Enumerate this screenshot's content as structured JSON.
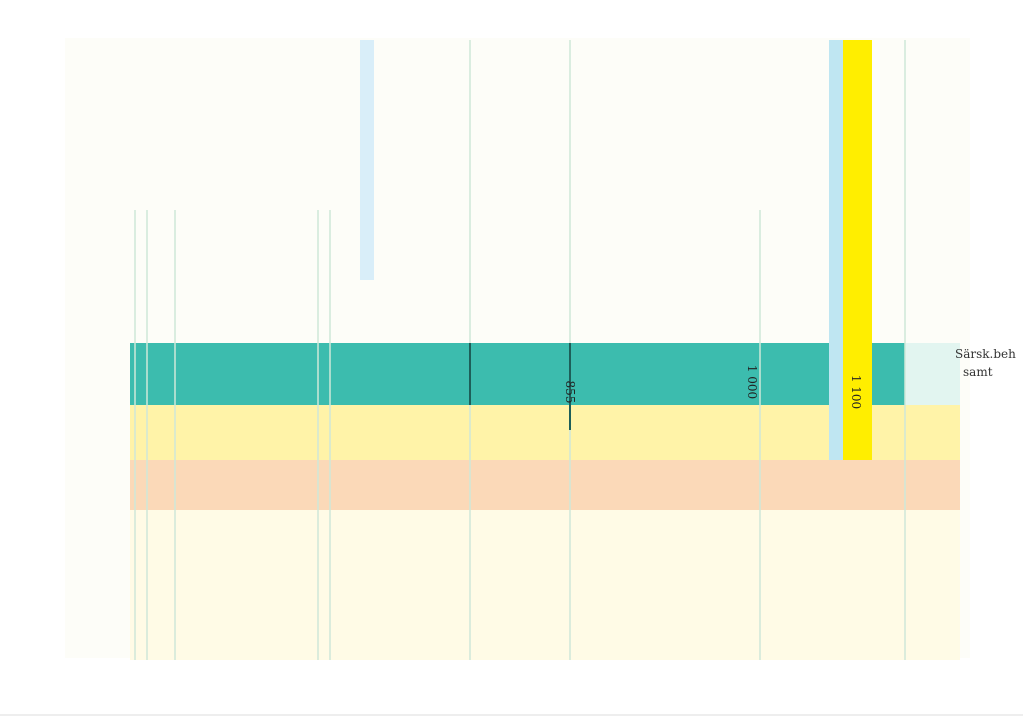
{
  "table": {
    "values": [
      "855",
      "1 000",
      "1 100"
    ],
    "side_note": [
      "Särsk.beh",
      "samt"
    ]
  }
}
